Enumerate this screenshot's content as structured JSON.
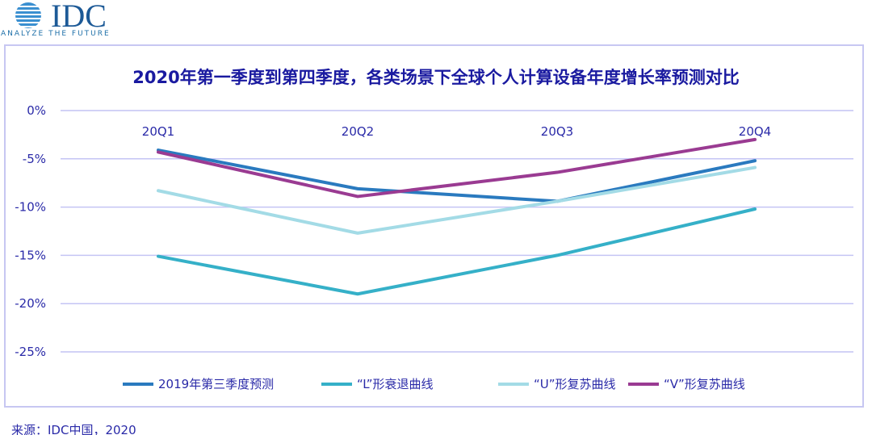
{
  "logo": {
    "text": "IDC",
    "tagline": "ANALYZE THE FUTURE"
  },
  "source": "来源：IDC中国，2020",
  "colors": {
    "grid": "#c4c4f4",
    "text": "#2a2aa8"
  },
  "chart_data": {
    "type": "line",
    "title": "2020年第一季度到第四季度，各类场景下全球个人计算设备年度增长率预测对比",
    "categories": [
      "20Q1",
      "20Q2",
      "20Q3",
      "20Q4"
    ],
    "ylim": [
      -25,
      0
    ],
    "yticks": [
      0,
      -5,
      -10,
      -15,
      -20,
      -25
    ],
    "ytick_labels": [
      "0%",
      "-5%",
      "-10%",
      "-15%",
      "-20%",
      "-25%"
    ],
    "grid": true,
    "legend_position": "bottom",
    "series": [
      {
        "name": "2019年第三季度预测",
        "color": "#2a7abf",
        "values": [
          -4.1,
          -8.1,
          -9.4,
          -5.2
        ]
      },
      {
        "name": "“L”形衰退曲线",
        "color": "#35b0c8",
        "values": [
          -15.1,
          -19.0,
          -15.0,
          -10.2
        ]
      },
      {
        "name": "“U”形复苏曲线",
        "color": "#a3dbe6",
        "values": [
          -8.3,
          -12.7,
          -9.4,
          -5.9
        ]
      },
      {
        "name": "“V”形复苏曲线",
        "color": "#9a3b92",
        "values": [
          -4.3,
          -8.9,
          -6.4,
          -3.0
        ]
      }
    ]
  }
}
